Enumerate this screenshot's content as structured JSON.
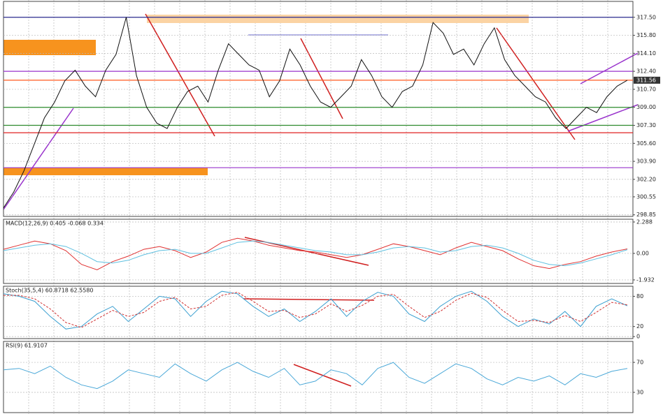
{
  "chart_data": [
    {
      "type": "line",
      "series": [
        {
          "color": "#111111",
          "values": [
            299.5,
            301,
            303,
            305.5,
            308,
            309.5,
            311.5,
            312.5,
            311,
            310,
            312.5,
            314,
            317.5,
            312,
            309,
            307.5,
            307,
            309,
            310.5,
            311,
            309.5,
            312.5,
            315,
            314,
            313,
            312.5,
            310,
            311.5,
            314.5,
            313,
            311,
            309.5,
            309,
            310,
            311,
            313.5,
            312,
            310,
            309,
            310.5,
            311,
            313,
            317,
            316,
            314,
            314.5,
            313,
            315,
            316.5,
            313.5,
            312,
            311,
            310,
            309.5,
            308,
            307,
            308,
            309,
            308.5,
            310,
            311,
            311.56
          ]
        }
      ],
      "hlines": [
        {
          "value": 317.5,
          "color": "#2b2b8f"
        },
        {
          "value": 312.4,
          "color": "#9933cc"
        },
        {
          "value": 311.56,
          "color": "#ff5a1f"
        },
        {
          "value": 309,
          "color": "#2e8b2e"
        },
        {
          "value": 307.3,
          "color": "#2e8b2e"
        },
        {
          "value": 306.6,
          "color": "#e02020"
        },
        {
          "value": 303.3,
          "color": "#9933cc"
        }
      ],
      "ylim": [
        298.7,
        319.0
      ],
      "yticks": [
        {
          "value": 317.5,
          "label": "317.50"
        },
        {
          "value": 315.8,
          "label": "315.80"
        },
        {
          "value": 314.1,
          "label": "314.10"
        },
        {
          "value": 312.4,
          "label": "312.40"
        },
        {
          "value": 310.7,
          "label": "310.70"
        },
        {
          "value": 309,
          "label": "309.00"
        },
        {
          "value": 307.3,
          "label": "307.30"
        },
        {
          "value": 305.6,
          "label": "305.60"
        },
        {
          "value": 303.9,
          "label": "303.90"
        },
        {
          "value": 302.2,
          "label": "302.20"
        },
        300.55,
        298.85
      ],
      "grid": true
    },
    {
      "type": "line",
      "title": "MACD(12,26,9) 0.405 -0.068 0.334",
      "series": [
        {
          "color": "#e03030",
          "values": [
            0.3,
            0.6,
            0.9,
            0.7,
            0.2,
            -0.8,
            -1.2,
            -0.6,
            -0.2,
            0.3,
            0.5,
            0.2,
            -0.3,
            0.1,
            0.8,
            1.1,
            0.9,
            0.6,
            0.4,
            0.2,
            0.1,
            -0.1,
            -0.3,
            -0.1,
            0.3,
            0.7,
            0.5,
            0.2,
            -0.1,
            0.4,
            0.8,
            0.5,
            0.2,
            -0.4,
            -0.9,
            -1.1,
            -0.8,
            -0.6,
            -0.2,
            0.1,
            0.33
          ]
        },
        {
          "color": "#5fc0e0",
          "values": [
            0.2,
            0.4,
            0.6,
            0.7,
            0.5,
            0,
            -0.6,
            -0.7,
            -0.5,
            -0.1,
            0.2,
            0.3,
            0,
            0,
            0.4,
            0.8,
            0.9,
            0.8,
            0.6,
            0.4,
            0.2,
            0.1,
            -0.1,
            -0.1,
            0.1,
            0.4,
            0.5,
            0.4,
            0.1,
            0.2,
            0.5,
            0.6,
            0.4,
            0,
            -0.5,
            -0.8,
            -0.9,
            -0.7,
            -0.4,
            -0.1,
            0.27
          ]
        }
      ],
      "ylim": [
        -2.19,
        2.49
      ],
      "yticks": [
        2.288,
        {
          "value": 0,
          "label": "0.00"
        },
        -1.932
      ],
      "grid": true
    },
    {
      "type": "line",
      "title": "Stoch(35,5,4) 60.8718 62.5580",
      "series": [
        {
          "color": "#3a9fd0",
          "values": [
            85,
            80,
            70,
            40,
            15,
            20,
            45,
            60,
            30,
            55,
            80,
            75,
            40,
            70,
            90,
            85,
            60,
            40,
            55,
            30,
            50,
            75,
            40,
            70,
            88,
            80,
            45,
            30,
            60,
            80,
            90,
            70,
            40,
            20,
            35,
            25,
            50,
            20,
            60,
            75,
            61
          ]
        },
        {
          "color": "#d03030",
          "dashed": true,
          "values": [
            82,
            82,
            75,
            55,
            28,
            18,
            35,
            52,
            40,
            48,
            70,
            78,
            55,
            60,
            82,
            88,
            70,
            50,
            52,
            38,
            45,
            65,
            50,
            62,
            80,
            84,
            60,
            38,
            50,
            72,
            86,
            78,
            52,
            30,
            32,
            28,
            42,
            30,
            48,
            68,
            63
          ]
        }
      ],
      "ylim": [
        -4,
        100
      ],
      "yticks": [
        80,
        20,
        0
      ],
      "grid": true
    },
    {
      "type": "line",
      "title": "RSI(9) 61.9107",
      "series": [
        {
          "color": "#4aa8d8",
          "values": [
            60,
            62,
            55,
            65,
            50,
            40,
            35,
            45,
            60,
            55,
            50,
            68,
            55,
            45,
            60,
            70,
            58,
            50,
            62,
            40,
            45,
            60,
            55,
            40,
            62,
            70,
            50,
            42,
            55,
            68,
            62,
            48,
            40,
            50,
            45,
            52,
            40,
            55,
            50,
            58,
            62
          ]
        }
      ],
      "ylim": [
        3,
        98
      ],
      "yticks": [
        70,
        30
      ],
      "grid": true
    }
  ]
}
